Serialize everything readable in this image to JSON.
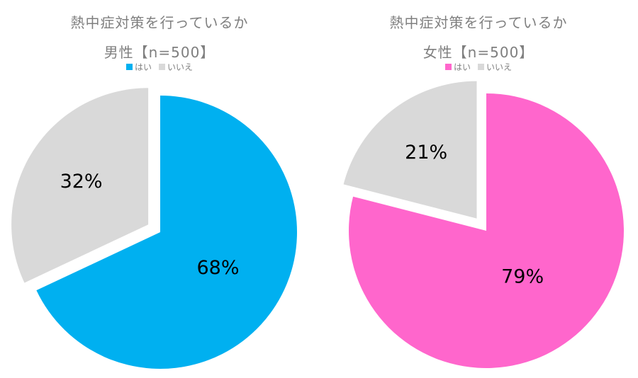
{
  "chart_data": [
    {
      "type": "pie",
      "title": "熱中症対策を行っているか",
      "subtitle": "男性【n=500】",
      "legend": [
        "はい",
        "いいえ"
      ],
      "slices": [
        {
          "label": "はい",
          "value": 68,
          "display": "68%",
          "color": "#00B0F0"
        },
        {
          "label": "いいえ",
          "value": 32,
          "display": "32%",
          "color": "#D9D9D9"
        }
      ]
    },
    {
      "type": "pie",
      "title": "熱中症対策を行っているか",
      "subtitle": "女性【n=500】",
      "legend": [
        "はい",
        "いいえ"
      ],
      "slices": [
        {
          "label": "はい",
          "value": 79,
          "display": "79%",
          "color": "#FF66CC"
        },
        {
          "label": "いいえ",
          "value": 21,
          "display": "21%",
          "color": "#D9D9D9"
        }
      ]
    }
  ]
}
